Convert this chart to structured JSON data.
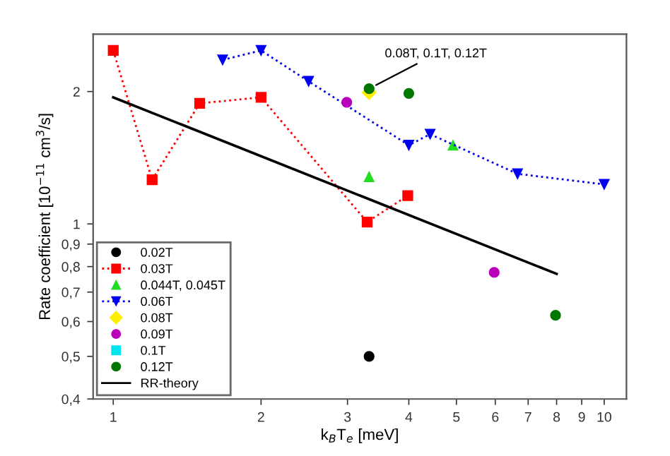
{
  "chart_data": {
    "type": "scatter",
    "xlabel": "k$_{B}$T$_{e}$ [meV]",
    "ylabel": "Rate coefficient [10$^{−11}$ cm$^{3}$/s]",
    "log": "xy",
    "xlim": [
      0.91,
      11.1
    ],
    "ylim": [
      0.4,
      2.7
    ],
    "xticks": [
      1,
      2,
      3,
      4,
      5,
      6,
      7,
      8,
      9,
      10
    ],
    "yticks": [
      {
        "value": 0.4,
        "label": "0,4"
      },
      {
        "value": 0.5,
        "label": "0,5"
      },
      {
        "value": 0.6,
        "label": "0,6"
      },
      {
        "value": 0.7,
        "label": "0,7"
      },
      {
        "value": 0.8,
        "label": "0,8"
      },
      {
        "value": 0.9,
        "label": "0,9"
      },
      1,
      2
    ],
    "grid": false,
    "legend": "bottom left",
    "annotations": [
      {
        "text": "0.08T, 0.1T, 0.12T",
        "x": 3.32,
        "y": 2.03
      }
    ],
    "series": [
      {
        "name": "0.02T",
        "color": "#000000",
        "marker": "circle",
        "x": [
          3.32
        ],
        "values": [
          0.5
        ]
      },
      {
        "name": "0.03T",
        "type": "line",
        "color": "#ff0000",
        "marker": "square",
        "line_style": "dotted",
        "x": [
          1,
          1.2,
          1.5,
          2,
          3.29,
          3.98
        ],
        "values": [
          2.48,
          1.26,
          1.88,
          1.94,
          1.01,
          1.16
        ]
      },
      {
        "name": "0.044T, 0.045T",
        "color": "#22dd22",
        "marker": "triangle",
        "x": [
          3.32,
          4.92
        ],
        "values": [
          1.28,
          1.51
        ]
      },
      {
        "name": "0.06T",
        "type": "line",
        "color": "#0000ee",
        "marker": "triangle_down",
        "line_style": "dotted",
        "x": [
          1.67,
          2,
          2.5,
          4,
          4.42,
          6.66,
          10
        ],
        "values": [
          2.36,
          2.48,
          2.11,
          1.51,
          1.6,
          1.3,
          1.23
        ]
      },
      {
        "name": "0.08T",
        "color": "#ffee00",
        "marker": "diamond",
        "x": [
          3.32
        ],
        "values": [
          1.99
        ]
      },
      {
        "name": "0.09T",
        "color": "#bb00bb",
        "marker": "circle",
        "x": [
          2.99,
          5.97
        ],
        "values": [
          1.89,
          0.776
        ]
      },
      {
        "name": "0.1T",
        "color": "#00e5ee",
        "marker": "square",
        "values": [
          null
        ]
      },
      {
        "name": "0.12T",
        "color": "#007700",
        "marker": "circle",
        "x": [
          3.32,
          4,
          7.96
        ],
        "values": [
          2.03,
          1.98,
          0.62
        ]
      },
      {
        "name": "RR-theory",
        "type": "line",
        "color": "#000000",
        "line_style": "solid",
        "marker": "none",
        "x": [
          1,
          8
        ],
        "values": [
          1.94,
          0.77
        ]
      }
    ]
  }
}
